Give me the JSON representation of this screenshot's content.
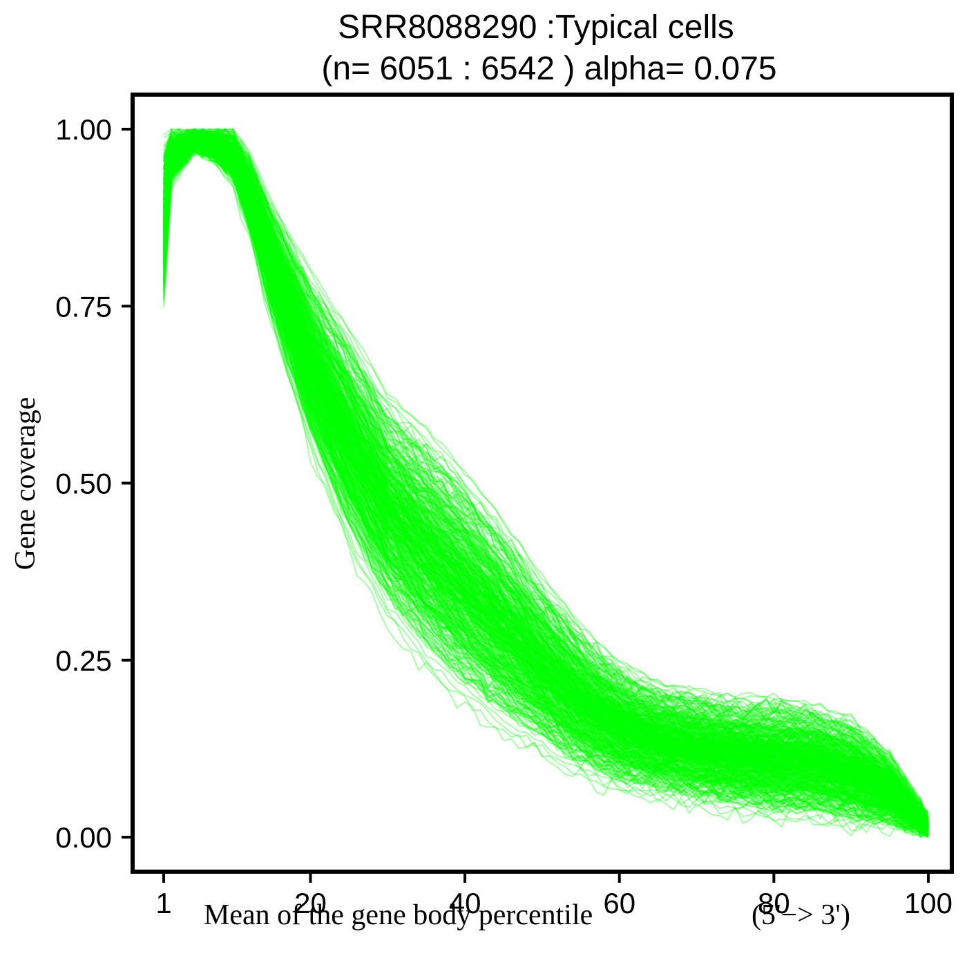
{
  "chart_data": {
    "type": "line",
    "title_line1": "SRR8088290 :Typical cells",
    "title_line2": "(n= 6051 : 6542 ) alpha= 0.075",
    "xlabel": "Mean of the gene body percentile",
    "xlabel_suffix": "(5'−> 3')",
    "ylabel": "Gene coverage",
    "xlim": [
      1,
      100
    ],
    "ylim": [
      0,
      1
    ],
    "x_ticks": [
      1,
      20,
      40,
      60,
      80,
      100
    ],
    "x_tick_labels": [
      "1",
      "20",
      "40",
      "60",
      "80",
      "100"
    ],
    "y_ticks": [
      0,
      0.25,
      0.5,
      0.75,
      1
    ],
    "y_tick_labels": [
      "0.00",
      "0.25",
      "0.50",
      "0.75",
      "1.00"
    ],
    "line_color": "#00ff00",
    "line_alpha": 0.075,
    "n_cells_shown": 6051,
    "n_cells_total": 6542,
    "envelope": {
      "x": [
        1,
        2,
        5,
        8,
        10,
        12,
        15,
        20,
        25,
        30,
        35,
        40,
        45,
        50,
        55,
        60,
        65,
        70,
        75,
        80,
        85,
        90,
        95,
        100
      ],
      "upper": [
        0.99,
        1.0,
        1.0,
        1.0,
        1.0,
        0.97,
        0.9,
        0.8,
        0.72,
        0.63,
        0.58,
        0.52,
        0.45,
        0.37,
        0.3,
        0.25,
        0.22,
        0.21,
        0.2,
        0.2,
        0.19,
        0.17,
        0.12,
        0.03
      ],
      "median": [
        0.86,
        0.99,
        1.0,
        1.0,
        0.99,
        0.92,
        0.83,
        0.7,
        0.58,
        0.48,
        0.4,
        0.33,
        0.27,
        0.21,
        0.16,
        0.13,
        0.11,
        0.1,
        0.09,
        0.08,
        0.07,
        0.06,
        0.04,
        0.01
      ],
      "lower": [
        0.74,
        0.92,
        0.97,
        0.95,
        0.92,
        0.85,
        0.72,
        0.54,
        0.4,
        0.3,
        0.23,
        0.18,
        0.14,
        0.11,
        0.08,
        0.06,
        0.05,
        0.04,
        0.03,
        0.02,
        0.02,
        0.01,
        0.01,
        0.0
      ]
    }
  }
}
